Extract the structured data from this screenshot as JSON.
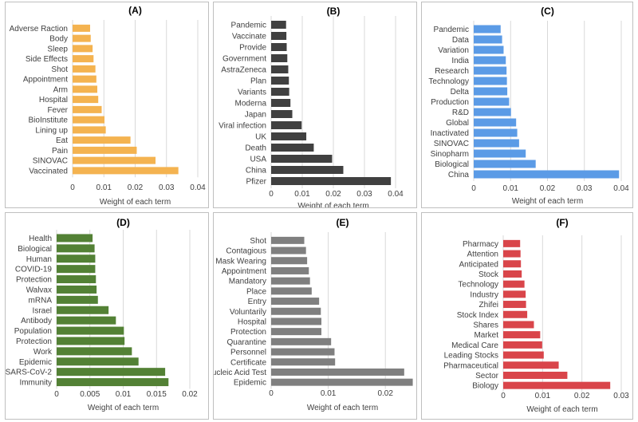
{
  "chart_data": [
    {
      "type": "bar",
      "orientation": "horizontal",
      "title": "(A)",
      "xlabel": "Weight of each term",
      "color": "#F4B350",
      "xlim": [
        0,
        0.04
      ],
      "xticks": [
        "0",
        "0.01",
        "0.02",
        "0.03",
        "0.04"
      ],
      "categories": [
        "Adverse Raction",
        "Body",
        "Sleep",
        "Side Effects",
        "Shot",
        "Appointment",
        "Arm",
        "Hospital",
        "Fever",
        "BioInstitute",
        "Lining up",
        "Eat",
        "Pain",
        "SINOVAC",
        "Vaccinated"
      ],
      "values": [
        0.0056,
        0.0058,
        0.0064,
        0.0067,
        0.0073,
        0.0076,
        0.0079,
        0.0082,
        0.0093,
        0.0102,
        0.0106,
        0.0185,
        0.0205,
        0.0265,
        0.0338
      ]
    },
    {
      "type": "bar",
      "orientation": "horizontal",
      "title": "(B)",
      "xlabel": "Weight of each term",
      "color": "#404040",
      "xlim": [
        0,
        0.04
      ],
      "xticks": [
        "0",
        "0.01",
        "0.02",
        "0.03",
        "0.04"
      ],
      "categories": [
        "Pandemic",
        "Vaccinate",
        "Provide",
        "Government",
        "AstraZeneca",
        "Plan",
        "Variants",
        "Moderna",
        "Japan",
        "Viral infection",
        "UK",
        "Death",
        "USA",
        "China",
        "Pfizer"
      ],
      "values": [
        0.0048,
        0.0049,
        0.005,
        0.0052,
        0.0055,
        0.0057,
        0.0058,
        0.0062,
        0.0068,
        0.0098,
        0.0113,
        0.0137,
        0.0196,
        0.0232,
        0.0385
      ]
    },
    {
      "type": "bar",
      "orientation": "horizontal",
      "title": "(C)",
      "xlabel": "Weight of each term",
      "color": "#5B9BE6",
      "xlim": [
        0,
        0.04
      ],
      "xticks": [
        "0",
        "0.01",
        "0.02",
        "0.03",
        "0.04"
      ],
      "categories": [
        "Pandemic",
        "Data",
        "Variation",
        "India",
        "Research",
        "Technology",
        "Delta",
        "Production",
        "R&D",
        "Global",
        "Inactivated",
        "SINOVAC",
        "Sinopharm",
        "Biological",
        "China"
      ],
      "values": [
        0.0073,
        0.0077,
        0.0081,
        0.0087,
        0.0089,
        0.009,
        0.0091,
        0.0096,
        0.0101,
        0.0115,
        0.0118,
        0.0123,
        0.0141,
        0.0168,
        0.0394
      ]
    },
    {
      "type": "bar",
      "orientation": "horizontal",
      "title": "(D)",
      "xlabel": "Weight of each term",
      "color": "#538135",
      "xlim": [
        0,
        0.02
      ],
      "xticks": [
        "0",
        "0.005",
        "0.01",
        "0.015",
        "0.02"
      ],
      "categories": [
        "Health",
        "Biological",
        "Human",
        "COVID-19",
        "Protection",
        "Walvax",
        "mRNA",
        "Israel",
        "Antibody",
        "Population",
        "Protection",
        "Work",
        "Epidemic",
        "SARS-CoV-2",
        "Immunity"
      ],
      "values": [
        0.0054,
        0.0057,
        0.0058,
        0.0058,
        0.0059,
        0.006,
        0.0062,
        0.0078,
        0.0089,
        0.0101,
        0.0102,
        0.0113,
        0.0123,
        0.0163,
        0.0168
      ]
    },
    {
      "type": "bar",
      "orientation": "horizontal",
      "title": "(E)",
      "xlabel": "Weight of each term",
      "color": "#7F7F7F",
      "xlim": [
        0,
        0.025
      ],
      "xticks": [
        "0",
        "0.01",
        "0.02"
      ],
      "categories": [
        "Shot",
        "Contagious",
        "Mask Wearing",
        "Appointment",
        "Mandatory",
        "Place",
        "Entry",
        "Voluntarily",
        "Hospital",
        "Protection",
        "Quarantine",
        "Personnel",
        "Certificate",
        "Nucleic Acid Test",
        "Epidemic"
      ],
      "values": [
        0.0058,
        0.0061,
        0.0063,
        0.0066,
        0.0068,
        0.0071,
        0.0084,
        0.0087,
        0.0088,
        0.0088,
        0.0105,
        0.0111,
        0.0112,
        0.0233,
        0.0248
      ]
    },
    {
      "type": "bar",
      "orientation": "horizontal",
      "title": "(F)",
      "xlabel": "Weight of each term",
      "color": "#D9454A",
      "xlim": [
        0,
        0.03
      ],
      "xticks": [
        "0",
        "0.01",
        "0.02",
        "0.03"
      ],
      "categories": [
        "Pharmacy",
        "Attention",
        "Anticipated",
        "Stock",
        "Technology",
        "Industry",
        "Zhifei",
        "Stock Index",
        "Shares",
        "Market",
        "Medical Care",
        "Leading Stocks",
        "Pharmaceutical",
        "Sector",
        "Biology"
      ],
      "values": [
        0.0043,
        0.0044,
        0.0045,
        0.0047,
        0.0054,
        0.0057,
        0.0058,
        0.0061,
        0.0078,
        0.0094,
        0.0099,
        0.0103,
        0.0141,
        0.0163,
        0.0272
      ]
    }
  ]
}
